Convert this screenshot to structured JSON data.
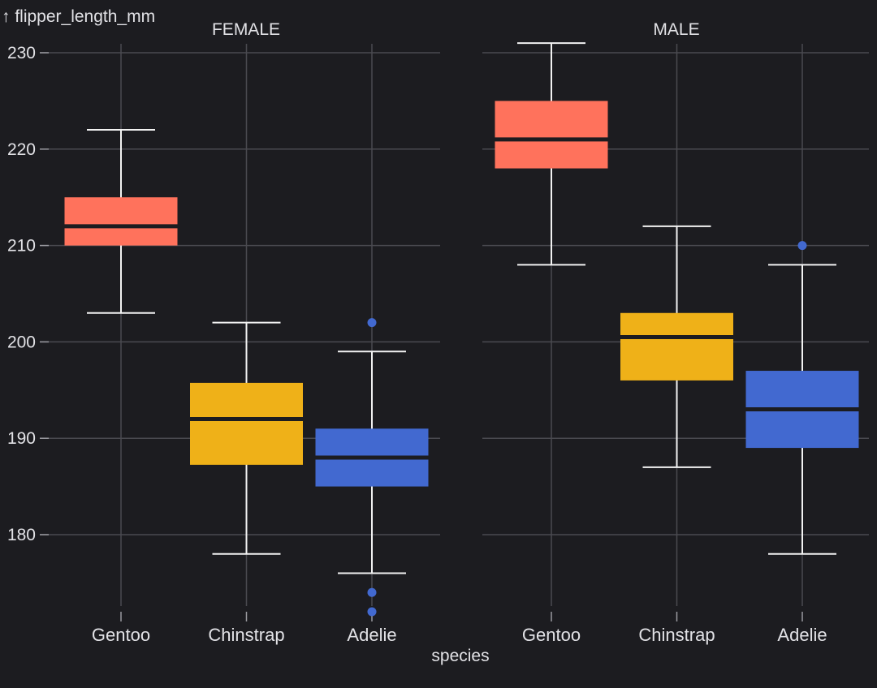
{
  "chart_data": {
    "type": "box",
    "title": "",
    "xlabel": "species",
    "ylabel": "↑ flipper_length_mm",
    "ylim": [
      171,
      231.7
    ],
    "yticks": [
      180,
      190,
      200,
      210,
      220,
      230
    ],
    "grid": true,
    "facets": [
      {
        "name": "FEMALE",
        "categories": [
          "Gentoo",
          "Chinstrap",
          "Adelie"
        ],
        "boxes": [
          {
            "category": "Gentoo",
            "color": "#ff725c",
            "q1": 210,
            "median": 212,
            "q3": 215,
            "whisker_low": 203,
            "whisker_high": 222,
            "outliers": []
          },
          {
            "category": "Chinstrap",
            "color": "#efb118",
            "q1": 187.25,
            "median": 192,
            "q3": 195.75,
            "whisker_low": 178,
            "whisker_high": 202,
            "outliers": []
          },
          {
            "category": "Adelie",
            "color": "#4269d0",
            "q1": 185,
            "median": 188,
            "q3": 191,
            "whisker_low": 176,
            "whisker_high": 199,
            "outliers": [
              202,
              174,
              172
            ]
          }
        ]
      },
      {
        "name": "MALE",
        "categories": [
          "Gentoo",
          "Chinstrap",
          "Adelie"
        ],
        "boxes": [
          {
            "category": "Gentoo",
            "color": "#ff725c",
            "q1": 218,
            "median": 221,
            "q3": 225,
            "whisker_low": 208,
            "whisker_high": 231,
            "outliers": []
          },
          {
            "category": "Chinstrap",
            "color": "#efb118",
            "q1": 196,
            "median": 200.5,
            "q3": 203,
            "whisker_low": 187,
            "whisker_high": 212,
            "outliers": []
          },
          {
            "category": "Adelie",
            "color": "#4269d0",
            "q1": 189,
            "median": 193,
            "q3": 197,
            "whisker_low": 178,
            "whisker_high": 208,
            "outliers": [
              210
            ]
          }
        ]
      }
    ]
  }
}
